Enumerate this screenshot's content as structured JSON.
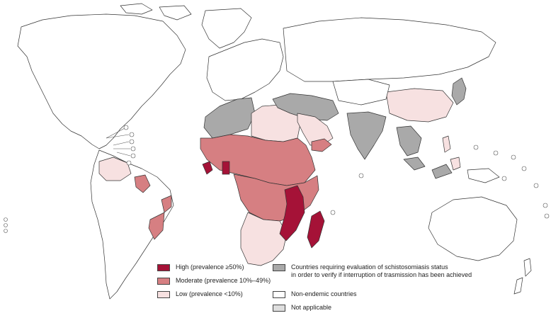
{
  "colors": {
    "high": "#a51237",
    "moderate": "#d67f82",
    "low": "#f7e1e1",
    "evaluation": "#a9a9a9",
    "non_endemic": "#ffffff",
    "not_applicable": "#dedede",
    "border": "#333333"
  },
  "legend": {
    "high": "High (prevalence ≥50%)",
    "moderate": "Moderate (prevalence 10%–49%)",
    "low": "Low (prevalence <10%)",
    "evaluation_line1": "Countries requiring evaluation of schistosomiasis status",
    "evaluation_line2": "in order to verify if interruption of trasmission has been achieved",
    "non_endemic": "Non-endemic countries",
    "not_applicable": "Not applicable"
  },
  "regions": [
    {
      "name": "north-america",
      "category": "non_endemic"
    },
    {
      "name": "greenland",
      "category": "non_endemic"
    },
    {
      "name": "south-america",
      "category": "non_endemic"
    },
    {
      "name": "venezuela",
      "category": "low"
    },
    {
      "name": "suriname",
      "category": "moderate"
    },
    {
      "name": "brazil-east",
      "category": "moderate"
    },
    {
      "name": "europe",
      "category": "non_endemic"
    },
    {
      "name": "russia",
      "category": "non_endemic"
    },
    {
      "name": "north-africa-west",
      "category": "evaluation"
    },
    {
      "name": "libya-egypt",
      "category": "low"
    },
    {
      "name": "sahel-west-africa",
      "category": "moderate"
    },
    {
      "name": "liberia",
      "category": "high"
    },
    {
      "name": "ghana",
      "category": "high"
    },
    {
      "name": "central-east-africa",
      "category": "moderate"
    },
    {
      "name": "southern-africa",
      "category": "low"
    },
    {
      "name": "mozambique-malawi",
      "category": "high"
    },
    {
      "name": "madagascar",
      "category": "high"
    },
    {
      "name": "arabian-peninsula",
      "category": "low"
    },
    {
      "name": "yemen-oman",
      "category": "moderate"
    },
    {
      "name": "middle-east",
      "category": "evaluation"
    },
    {
      "name": "india",
      "category": "evaluation"
    },
    {
      "name": "china",
      "category": "low"
    },
    {
      "name": "southeast-asia",
      "category": "evaluation"
    },
    {
      "name": "philippines",
      "category": "low"
    },
    {
      "name": "japan",
      "category": "evaluation"
    },
    {
      "name": "indonesia",
      "category": "evaluation"
    },
    {
      "name": "australia",
      "category": "non_endemic"
    },
    {
      "name": "new-zealand",
      "category": "non_endemic"
    }
  ]
}
